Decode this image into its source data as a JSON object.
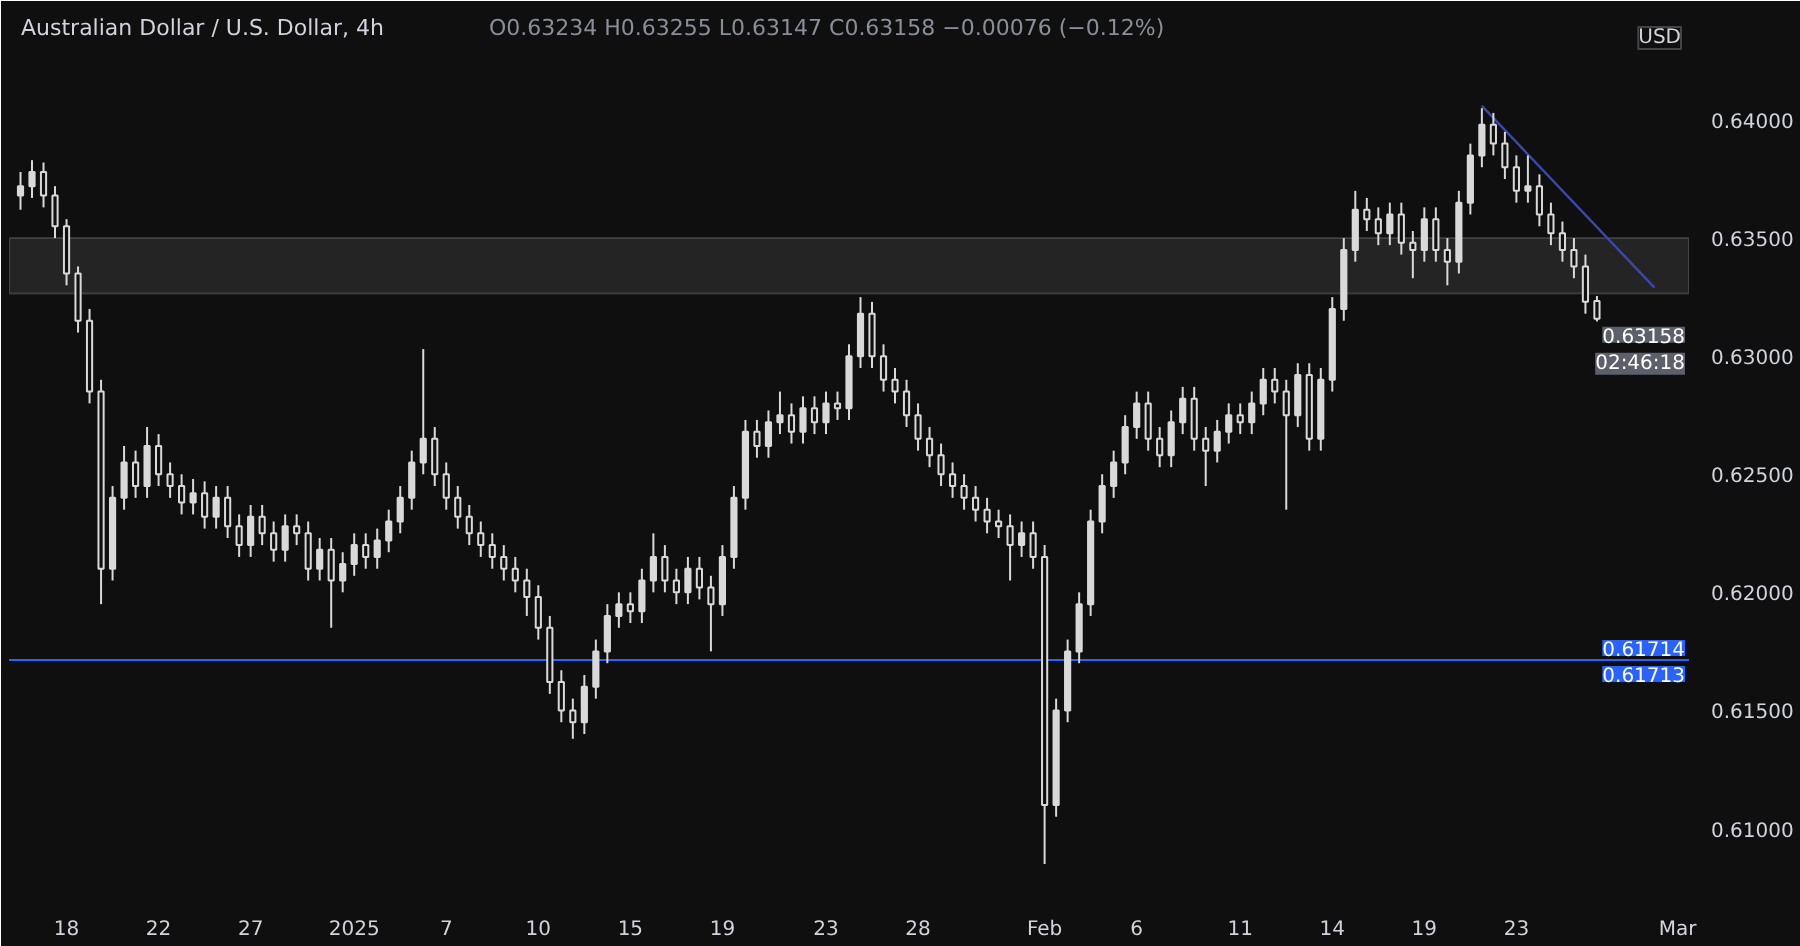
{
  "chart_data": {
    "type": "candlestick",
    "title": "Australian Dollar / U.S. Dollar, 4h",
    "subtitle": "O0.63234 H0.63255 L0.63147 C0.63158 −0.00076 (−0.12%)",
    "color": "#d9d9d9",
    "categories": [
      null,
      null,
      null,
      null,
      "18",
      null,
      null,
      null,
      null,
      null,
      null,
      null,
      "22",
      null,
      null,
      null,
      null,
      null,
      null,
      null,
      "27",
      null,
      null,
      null,
      null,
      null,
      null,
      null,
      null,
      "2025",
      null,
      null,
      null,
      null,
      null,
      null,
      null,
      "7",
      null,
      null,
      null,
      null,
      null,
      null,
      null,
      "10",
      null,
      null,
      null,
      null,
      null,
      null,
      null,
      "15",
      null,
      null,
      null,
      null,
      null,
      null,
      null,
      "19",
      null,
      null,
      null,
      null,
      null,
      null,
      null,
      null,
      "23",
      null,
      null,
      null,
      null,
      null,
      null,
      null,
      "28",
      null,
      null,
      null,
      null,
      null,
      null,
      null,
      null,
      null,
      null,
      "Feb",
      null,
      null,
      null,
      null,
      null,
      null,
      null,
      "6",
      null,
      null,
      null,
      null,
      null,
      null,
      null,
      null,
      "11",
      null,
      null,
      null,
      null,
      null,
      null,
      null,
      "14",
      null,
      null,
      null,
      null,
      null,
      null,
      null,
      "19",
      null,
      null,
      null,
      null,
      null,
      null,
      null,
      "23",
      null,
      null,
      null,
      null,
      null,
      null,
      null,
      null,
      null,
      null,
      null,
      null,
      null,
      "Mar"
    ],
    "ohlc": [
      [
        0.6368,
        0.6378,
        0.6362,
        0.6372
      ],
      [
        0.6372,
        0.6383,
        0.6367,
        0.6378
      ],
      [
        0.6378,
        0.6382,
        0.6363,
        0.6368
      ],
      [
        0.6368,
        0.6372,
        0.635,
        0.6355
      ],
      [
        0.6355,
        0.6358,
        0.633,
        0.6335
      ],
      [
        0.6335,
        0.6338,
        0.631,
        0.6315
      ],
      [
        0.6315,
        0.632,
        0.628,
        0.6285
      ],
      [
        0.6285,
        0.629,
        0.6195,
        0.621
      ],
      [
        0.621,
        0.6245,
        0.6205,
        0.624
      ],
      [
        0.624,
        0.6262,
        0.6235,
        0.6255
      ],
      [
        0.6255,
        0.626,
        0.624,
        0.6245
      ],
      [
        0.6245,
        0.627,
        0.624,
        0.6262
      ],
      [
        0.6262,
        0.6267,
        0.6245,
        0.625
      ],
      [
        0.625,
        0.6255,
        0.624,
        0.6245
      ],
      [
        0.6245,
        0.625,
        0.6233,
        0.6238
      ],
      [
        0.6238,
        0.6248,
        0.6233,
        0.6242
      ],
      [
        0.6242,
        0.6247,
        0.6227,
        0.6232
      ],
      [
        0.6232,
        0.6245,
        0.6227,
        0.624
      ],
      [
        0.624,
        0.6245,
        0.6223,
        0.6228
      ],
      [
        0.6228,
        0.6233,
        0.6215,
        0.622
      ],
      [
        0.622,
        0.6237,
        0.6215,
        0.6232
      ],
      [
        0.6232,
        0.6237,
        0.622,
        0.6225
      ],
      [
        0.6225,
        0.623,
        0.6213,
        0.6218
      ],
      [
        0.6218,
        0.6233,
        0.6213,
        0.6228
      ],
      [
        0.6228,
        0.6233,
        0.622,
        0.6225
      ],
      [
        0.6225,
        0.623,
        0.6205,
        0.621
      ],
      [
        0.621,
        0.6223,
        0.6205,
        0.6218
      ],
      [
        0.6218,
        0.6223,
        0.6185,
        0.6205
      ],
      [
        0.6205,
        0.6217,
        0.62,
        0.6212
      ],
      [
        0.6212,
        0.6225,
        0.6207,
        0.622
      ],
      [
        0.622,
        0.6225,
        0.621,
        0.6215
      ],
      [
        0.6215,
        0.6227,
        0.621,
        0.6222
      ],
      [
        0.6222,
        0.6235,
        0.6217,
        0.623
      ],
      [
        0.623,
        0.6245,
        0.6225,
        0.624
      ],
      [
        0.624,
        0.626,
        0.6235,
        0.6255
      ],
      [
        0.6255,
        0.6303,
        0.625,
        0.6265
      ],
      [
        0.6265,
        0.627,
        0.6245,
        0.625
      ],
      [
        0.625,
        0.6255,
        0.6235,
        0.624
      ],
      [
        0.624,
        0.6245,
        0.6227,
        0.6232
      ],
      [
        0.6232,
        0.6237,
        0.622,
        0.6225
      ],
      [
        0.6225,
        0.623,
        0.6215,
        0.622
      ],
      [
        0.622,
        0.6225,
        0.621,
        0.6215
      ],
      [
        0.6215,
        0.622,
        0.6205,
        0.621
      ],
      [
        0.621,
        0.6215,
        0.62,
        0.6205
      ],
      [
        0.6205,
        0.621,
        0.619,
        0.6198
      ],
      [
        0.6198,
        0.6203,
        0.618,
        0.6185
      ],
      [
        0.6185,
        0.619,
        0.6157,
        0.6162
      ],
      [
        0.6162,
        0.6167,
        0.6145,
        0.615
      ],
      [
        0.615,
        0.6155,
        0.6138,
        0.6145
      ],
      [
        0.6145,
        0.6165,
        0.614,
        0.616
      ],
      [
        0.616,
        0.618,
        0.6155,
        0.6175
      ],
      [
        0.6175,
        0.6195,
        0.617,
        0.619
      ],
      [
        0.619,
        0.62,
        0.6185,
        0.6195
      ],
      [
        0.6195,
        0.62,
        0.6187,
        0.6192
      ],
      [
        0.6192,
        0.621,
        0.6187,
        0.6205
      ],
      [
        0.6205,
        0.6225,
        0.62,
        0.6215
      ],
      [
        0.6215,
        0.622,
        0.62,
        0.6205
      ],
      [
        0.6205,
        0.621,
        0.6195,
        0.62
      ],
      [
        0.62,
        0.6215,
        0.6195,
        0.621
      ],
      [
        0.621,
        0.6215,
        0.6197,
        0.6202
      ],
      [
        0.6202,
        0.6207,
        0.6175,
        0.6195
      ],
      [
        0.6195,
        0.622,
        0.619,
        0.6215
      ],
      [
        0.6215,
        0.6245,
        0.621,
        0.624
      ],
      [
        0.624,
        0.6273,
        0.6235,
        0.6268
      ],
      [
        0.6268,
        0.6273,
        0.6257,
        0.6262
      ],
      [
        0.6262,
        0.6277,
        0.6257,
        0.6272
      ],
      [
        0.6272,
        0.6285,
        0.6267,
        0.6275
      ],
      [
        0.6275,
        0.628,
        0.6263,
        0.6268
      ],
      [
        0.6268,
        0.6283,
        0.6263,
        0.6278
      ],
      [
        0.6278,
        0.6283,
        0.6267,
        0.6272
      ],
      [
        0.6272,
        0.6285,
        0.6267,
        0.628
      ],
      [
        0.628,
        0.6285,
        0.6273,
        0.6278
      ],
      [
        0.6278,
        0.6305,
        0.6273,
        0.63
      ],
      [
        0.63,
        0.6325,
        0.6295,
        0.6318
      ],
      [
        0.6318,
        0.6323,
        0.6295,
        0.63
      ],
      [
        0.63,
        0.6305,
        0.6285,
        0.629
      ],
      [
        0.629,
        0.6295,
        0.628,
        0.6285
      ],
      [
        0.6285,
        0.629,
        0.627,
        0.6275
      ],
      [
        0.6275,
        0.628,
        0.626,
        0.6265
      ],
      [
        0.6265,
        0.627,
        0.6253,
        0.6258
      ],
      [
        0.6258,
        0.6263,
        0.6245,
        0.625
      ],
      [
        0.625,
        0.6255,
        0.624,
        0.6245
      ],
      [
        0.6245,
        0.625,
        0.6235,
        0.624
      ],
      [
        0.624,
        0.6245,
        0.623,
        0.6235
      ],
      [
        0.6235,
        0.624,
        0.6225,
        0.623
      ],
      [
        0.623,
        0.6235,
        0.6223,
        0.6228
      ],
      [
        0.6228,
        0.6233,
        0.6205,
        0.622
      ],
      [
        0.622,
        0.623,
        0.6215,
        0.6225
      ],
      [
        0.6225,
        0.623,
        0.621,
        0.6215
      ],
      [
        0.6215,
        0.622,
        0.6085,
        0.611
      ],
      [
        0.611,
        0.6155,
        0.6105,
        0.615
      ],
      [
        0.615,
        0.618,
        0.6145,
        0.6175
      ],
      [
        0.6175,
        0.62,
        0.617,
        0.6195
      ],
      [
        0.6195,
        0.6235,
        0.619,
        0.623
      ],
      [
        0.623,
        0.625,
        0.6225,
        0.6245
      ],
      [
        0.6245,
        0.626,
        0.624,
        0.6255
      ],
      [
        0.6255,
        0.6275,
        0.625,
        0.627
      ],
      [
        0.627,
        0.6285,
        0.6265,
        0.628
      ],
      [
        0.628,
        0.6285,
        0.626,
        0.6265
      ],
      [
        0.6265,
        0.627,
        0.6253,
        0.6258
      ],
      [
        0.6258,
        0.6277,
        0.6253,
        0.6272
      ],
      [
        0.6272,
        0.6287,
        0.6267,
        0.6282
      ],
      [
        0.6282,
        0.6287,
        0.626,
        0.6265
      ],
      [
        0.6265,
        0.627,
        0.6245,
        0.626
      ],
      [
        0.626,
        0.6273,
        0.6255,
        0.6268
      ],
      [
        0.6268,
        0.628,
        0.6263,
        0.6275
      ],
      [
        0.6275,
        0.628,
        0.6267,
        0.6272
      ],
      [
        0.6272,
        0.6285,
        0.6267,
        0.628
      ],
      [
        0.628,
        0.6295,
        0.6275,
        0.629
      ],
      [
        0.629,
        0.6295,
        0.628,
        0.6285
      ],
      [
        0.6285,
        0.629,
        0.6235,
        0.6275
      ],
      [
        0.6275,
        0.6297,
        0.627,
        0.6292
      ],
      [
        0.6292,
        0.6297,
        0.626,
        0.6265
      ],
      [
        0.6265,
        0.6295,
        0.626,
        0.629
      ],
      [
        0.629,
        0.6325,
        0.6285,
        0.632
      ],
      [
        0.632,
        0.635,
        0.6315,
        0.6345
      ],
      [
        0.6345,
        0.637,
        0.634,
        0.6362
      ],
      [
        0.6362,
        0.6367,
        0.6353,
        0.6358
      ],
      [
        0.6358,
        0.6363,
        0.6347,
        0.6352
      ],
      [
        0.6352,
        0.6365,
        0.6347,
        0.636
      ],
      [
        0.636,
        0.6365,
        0.6343,
        0.6348
      ],
      [
        0.6348,
        0.6353,
        0.6333,
        0.6345
      ],
      [
        0.6345,
        0.6363,
        0.634,
        0.6358
      ],
      [
        0.6358,
        0.6363,
        0.634,
        0.6345
      ],
      [
        0.6345,
        0.635,
        0.633,
        0.634
      ],
      [
        0.634,
        0.637,
        0.6335,
        0.6365
      ],
      [
        0.6365,
        0.639,
        0.636,
        0.6385
      ],
      [
        0.6385,
        0.6405,
        0.638,
        0.6398
      ],
      [
        0.6398,
        0.6403,
        0.6385,
        0.639
      ],
      [
        0.639,
        0.6395,
        0.6375,
        0.638
      ],
      [
        0.638,
        0.6385,
        0.6365,
        0.637
      ],
      [
        0.637,
        0.6385,
        0.6365,
        0.6372
      ],
      [
        0.6372,
        0.6377,
        0.6355,
        0.636
      ],
      [
        0.636,
        0.6365,
        0.6347,
        0.6352
      ],
      [
        0.6352,
        0.6357,
        0.634,
        0.6345
      ],
      [
        0.6345,
        0.635,
        0.6333,
        0.6338
      ],
      [
        0.6338,
        0.6343,
        0.6318,
        0.6323
      ],
      [
        0.63234,
        0.63255,
        0.63147,
        0.63158
      ],
      null,
      null,
      null,
      null,
      null,
      null,
      null
    ],
    "series": [
      {
        "type": "line",
        "color": "#3949ab",
        "values": [
          null,
          null,
          null,
          null,
          null,
          null,
          null,
          null,
          null,
          null,
          null,
          null,
          null,
          null,
          null,
          null,
          null,
          null,
          null,
          null,
          null,
          null,
          null,
          null,
          null,
          null,
          null,
          null,
          null,
          null,
          null,
          null,
          null,
          null,
          null,
          null,
          null,
          null,
          null,
          null,
          null,
          null,
          null,
          null,
          null,
          null,
          null,
          null,
          null,
          null,
          null,
          null,
          null,
          null,
          null,
          null,
          null,
          null,
          null,
          null,
          null,
          null,
          null,
          null,
          null,
          null,
          null,
          null,
          null,
          null,
          null,
          null,
          null,
          null,
          null,
          null,
          null,
          null,
          null,
          null,
          null,
          null,
          null,
          null,
          null,
          null,
          null,
          null,
          null,
          null,
          null,
          null,
          null,
          null,
          null,
          null,
          null,
          null,
          null,
          null,
          null,
          null,
          null,
          null,
          null,
          null,
          null,
          null,
          null,
          null,
          null,
          null,
          null,
          null,
          null,
          null,
          null,
          null,
          null,
          null,
          null,
          null,
          null,
          null,
          null,
          null,
          null,
          0.6406,
          null,
          null,
          null,
          null,
          null,
          null,
          null,
          null,
          null,
          null,
          null,
          null,
          null,
          null,
          0.6329,
          null,
          null
        ]
      }
    ],
    "ylim": [
      0.6071,
      0.6447
    ],
    "yticks": [
      {
        "value": 0.61,
        "label": "0.61000"
      },
      {
        "value": 0.615,
        "label": "0.61500"
      },
      {
        "value": 0.62,
        "label": "0.62000"
      },
      {
        "value": 0.625,
        "label": "0.62500"
      },
      {
        "value": 0.63,
        "label": "0.63000"
      },
      {
        "value": 0.635,
        "label": "0.63500"
      },
      {
        "value": 0.64,
        "label": "0.64000"
      }
    ],
    "ref_lines": [
      {
        "axis": "y",
        "value": 0.61714,
        "label": "0.61714",
        "color": "#2962ff"
      }
    ],
    "bands": [
      {
        "axis": "y",
        "from": 0.63265,
        "to": 0.635,
        "color": "#3a3a3a"
      }
    ],
    "annotations": [
      "USD",
      "0.63158",
      "02:46:18",
      {
        "text": "0.61713",
        "y": 0.61713
      }
    ]
  }
}
